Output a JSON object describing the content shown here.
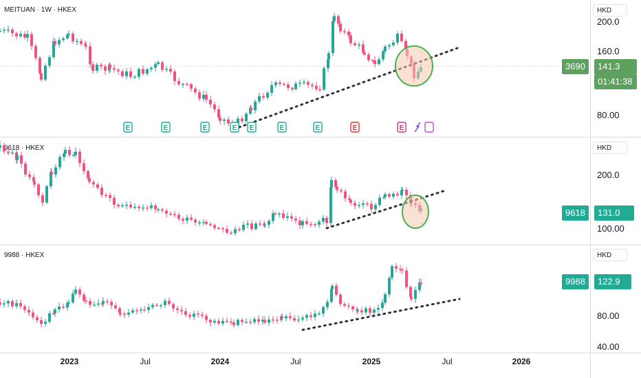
{
  "currency": "HKD",
  "colors": {
    "up": "#26a69a",
    "down": "#ef5382",
    "badge_3690": "#5ea05e",
    "badge_teal": "#22ab94",
    "ellipse": "#4caf50",
    "ellipse_fill": "#f7c9b0"
  },
  "panes": [
    {
      "symbol_label": "MEITUAN · 1W · HKEX",
      "ticker": "3690",
      "price": "141.3",
      "countdown": "01:41:38",
      "ticks": [
        "200.0",
        "160.0",
        "80.00"
      ]
    },
    {
      "symbol_label": "9618 · HKEX",
      "ticker": "9618",
      "price": "131.0",
      "ticks": [
        "200.0",
        "100.00"
      ]
    },
    {
      "symbol_label": "9988 · HKEX",
      "ticker": "9988",
      "price": "122.9",
      "ticks": [
        "80.00",
        "40.00"
      ]
    }
  ],
  "time_axis": [
    "2023",
    "Jul",
    "2024",
    "Jul",
    "2025",
    "Jul",
    "2026"
  ],
  "event_marks": [
    "E",
    "E",
    "E",
    "E",
    "E",
    "E",
    "E",
    "E",
    "E"
  ]
}
